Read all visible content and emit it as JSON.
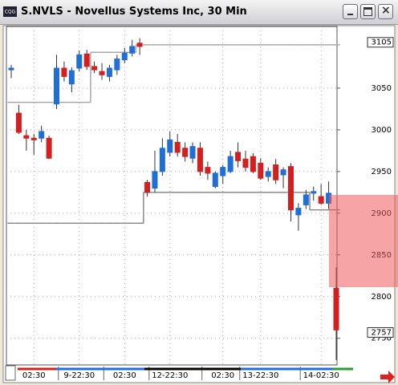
{
  "window_title": "S.NVLS - Novellus Systems Inc, 30 Min",
  "chart_data": {
    "type": "candlestick",
    "categories": [
      null,
      null,
      null,
      "02:30",
      null,
      null,
      null,
      null,
      null,
      "9-22:30",
      null,
      null,
      null,
      null,
      null,
      "02:30",
      null,
      null,
      null,
      null,
      null,
      "12-22:30",
      null,
      null,
      null,
      null,
      null,
      null,
      "02:30",
      null,
      null,
      null,
      null,
      "13-22:30",
      null,
      null,
      null,
      null,
      null,
      null,
      null,
      "14-02:30",
      null,
      null
    ],
    "open": [
      3072,
      3020,
      2993,
      2990,
      2990,
      2990,
      3031,
      3074,
      3055,
      3074,
      3091,
      3076,
      3070,
      3064,
      3072,
      3084,
      3092,
      3104,
      2937,
      2930,
      2950,
      2973,
      2985,
      2978,
      2966,
      2978,
      2955,
      2932,
      2945,
      2950,
      2973,
      2965,
      2968,
      2960,
      2944,
      2958,
      2946,
      2956,
      2898,
      2910,
      2924,
      2920,
      2912,
      2810
    ],
    "high": [
      3078,
      3030,
      3000,
      2995,
      3005,
      2993,
      3090,
      3082,
      3075,
      3095,
      3096,
      3082,
      3080,
      3078,
      3090,
      3098,
      3108,
      3110,
      2940,
      2975,
      2990,
      2998,
      2995,
      2985,
      2985,
      2985,
      2962,
      2950,
      2958,
      2975,
      2985,
      2975,
      2972,
      2966,
      2955,
      2965,
      2955,
      2960,
      2912,
      2928,
      2932,
      2935,
      2938,
      2835
    ],
    "low": [
      3062,
      2995,
      2975,
      2970,
      2985,
      2965,
      3025,
      3058,
      3045,
      3070,
      3072,
      3068,
      3060,
      3058,
      3066,
      3080,
      3088,
      3090,
      2920,
      2925,
      2945,
      2968,
      2968,
      2962,
      2960,
      2945,
      2940,
      2930,
      2935,
      2948,
      2955,
      2950,
      2948,
      2940,
      2938,
      2935,
      2930,
      2890,
      2879,
      2905,
      2915,
      2910,
      2905,
      2724
    ],
    "close": [
      3074,
      2997,
      2990,
      2988,
      2998,
      2966,
      3074,
      3064,
      3071,
      3090,
      3076,
      3072,
      3066,
      3074,
      3085,
      3092,
      3100,
      3100,
      2925,
      2950,
      2978,
      2988,
      2973,
      2968,
      2980,
      2950,
      2948,
      2948,
      2955,
      2968,
      2963,
      2955,
      2950,
      2942,
      2950,
      2940,
      2952,
      2904,
      2906,
      2922,
      2926,
      2912,
      2924,
      2760
    ],
    "up_color": "#1f6fd6",
    "down_color": "#d22020",
    "series": [
      {
        "color": "#a8a8a8",
        "values": [
          3033,
          3033,
          3033,
          3033,
          3033,
          3033,
          3033,
          3033,
          3033,
          3033,
          3033,
          3093,
          3093,
          3093,
          3093,
          3093,
          3093,
          3102,
          3102,
          3102,
          3102,
          3102,
          3102,
          3102,
          3102,
          3102,
          3102,
          3102,
          3102,
          3102,
          3102,
          3102,
          3102,
          3102,
          3102,
          3102,
          3102,
          3102,
          3102,
          3102,
          3102,
          3102,
          3102,
          3102
        ]
      },
      {
        "color": "#8a8a8a",
        "values": [
          2888,
          2888,
          2888,
          2888,
          2888,
          2888,
          2888,
          2888,
          2888,
          2888,
          2888,
          2888,
          2888,
          2888,
          2888,
          2888,
          2888,
          2888,
          2925,
          2925,
          2925,
          2925,
          2925,
          2925,
          2925,
          2925,
          2925,
          2925,
          2925,
          2925,
          2925,
          2925,
          2925,
          2925,
          2925,
          2925,
          2925,
          2925,
          2925,
          2925,
          2904,
          2904,
          2904,
          2904
        ]
      }
    ],
    "ylim": [
      2718,
      3124
    ],
    "yticks": [
      2750,
      2800,
      2850,
      2900,
      2950,
      3000,
      3050
    ],
    "price_labels": [
      3105,
      2757
    ],
    "grid": true
  }
}
